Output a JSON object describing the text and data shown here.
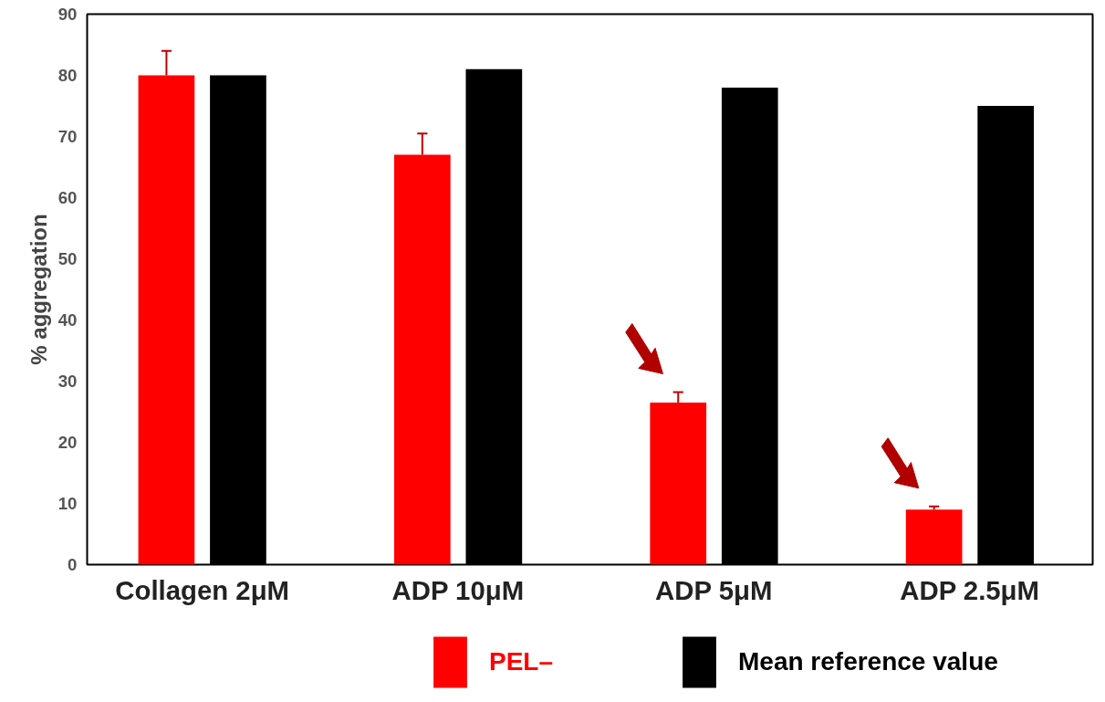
{
  "chart_data": {
    "type": "bar",
    "ylabel": "% aggregation",
    "categories": [
      "Collagen 2μM",
      "ADP 10μM",
      "ADP 5μM",
      "ADP 2.5μM"
    ],
    "series": [
      {
        "name": "PEL–",
        "color": "#ff0000",
        "values": [
          80,
          67,
          26.5,
          9
        ],
        "errors": [
          [
            80,
            84
          ],
          [
            67,
            70.5
          ],
          [
            26.5,
            28.2
          ],
          [
            9,
            9.5
          ]
        ]
      },
      {
        "name": "Mean reference value",
        "color": "#000000",
        "values": [
          80,
          81,
          78,
          75
        ]
      }
    ],
    "ylim": [
      0,
      90
    ],
    "yticks": [
      0,
      10,
      20,
      30,
      40,
      50,
      60,
      70,
      80,
      90
    ],
    "grid": false,
    "legend": "bottom"
  }
}
